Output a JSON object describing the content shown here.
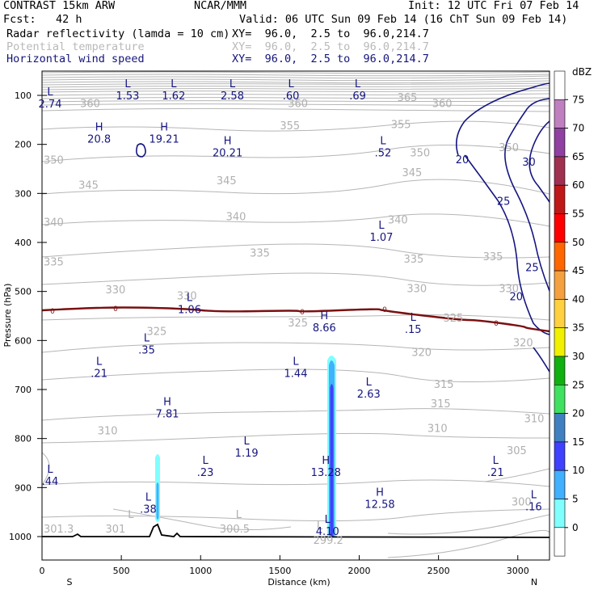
{
  "header": {
    "model": "CONTRAST 15km ARW",
    "center": "NCAR/MMM",
    "init": "Init: 12 UTC Fri 07 Feb 14",
    "fcst": "Fcst:   42 h",
    "valid": "Valid: 06 UTC Sun 09 Feb 14 (16 ChT Sun 09 Feb 14)",
    "fields": [
      {
        "name": "Radar reflectivity (lamda = 10 cm)",
        "xy": "XY=  96.0,  2.5 to  96.0,214.7"
      },
      {
        "name": "Potential temperature",
        "xy": "XY=  96.0,  2.5 to  96.0,214.7"
      },
      {
        "name": "Horizontal wind speed",
        "xy": "XY=  96.0,  2.5 to  96.0,214.7"
      }
    ]
  },
  "chart_data": {
    "type": "cross-section",
    "xlabel": "Distance (km)",
    "ylabel": "Pressure (hPa)",
    "x_ticks": [
      "0",
      "500",
      "1000",
      "1500",
      "2000",
      "2500",
      "3000"
    ],
    "y_ticks": [
      "100",
      "200",
      "300",
      "400",
      "500",
      "600",
      "700",
      "800",
      "900",
      "1000"
    ],
    "xlim": [
      0,
      3200
    ],
    "ylim": [
      50,
      1050
    ],
    "end_labels": {
      "left": "S",
      "right": "N"
    },
    "colorbar": {
      "unit": "dBZ",
      "levels": [
        "75",
        "70",
        "65",
        "60",
        "55",
        "50",
        "45",
        "40",
        "35",
        "30",
        "25",
        "20",
        "15",
        "10",
        "5",
        "0"
      ],
      "colors": [
        "#ffffff",
        "#c080c0",
        "#9040a0",
        "#a03050",
        "#c01818",
        "#ff0000",
        "#ff6600",
        "#f4a040",
        "#ffd040",
        "#f0f000",
        "#10b010",
        "#40e060",
        "#4080c0",
        "#4040ff",
        "#40b0ff",
        "#80ffff",
        "#ffffff"
      ]
    },
    "theta_contours": {
      "color": "#b0b0b0",
      "labels": [
        {
          "text": "360",
          "x": 240,
          "p": 117
        },
        {
          "text": "360",
          "x": 1550,
          "p": 117
        },
        {
          "text": "365",
          "x": 2240,
          "p": 105
        },
        {
          "text": "360",
          "x": 2460,
          "p": 117
        },
        {
          "text": "355",
          "x": 1500,
          "p": 163
        },
        {
          "text": "355",
          "x": 2200,
          "p": 160
        },
        {
          "text": "350",
          "x": -50,
          "p": 233
        },
        {
          "text": "350",
          "x": 2320,
          "p": 218
        },
        {
          "text": "350",
          "x": 2880,
          "p": 207
        },
        {
          "text": "345",
          "x": 230,
          "p": 284
        },
        {
          "text": "345",
          "x": 1100,
          "p": 275
        },
        {
          "text": "345",
          "x": 2270,
          "p": 258
        },
        {
          "text": "340",
          "x": -120,
          "p": 360
        },
        {
          "text": "340",
          "x": 1160,
          "p": 348
        },
        {
          "text": "340",
          "x": 2180,
          "p": 355
        },
        {
          "text": "335",
          "x": -90,
          "p": 440
        },
        {
          "text": "335",
          "x": 1310,
          "p": 422
        },
        {
          "text": "335",
          "x": 2280,
          "p": 435
        },
        {
          "text": "335",
          "x": 2780,
          "p": 430
        },
        {
          "text": "330",
          "x": 400,
          "p": 497
        },
        {
          "text": "330",
          "x": 850,
          "p": 510
        },
        {
          "text": "330",
          "x": 2300,
          "p": 495
        },
        {
          "text": "330",
          "x": 2880,
          "p": 495
        },
        {
          "text": "325",
          "x": 660,
          "p": 582
        },
        {
          "text": "325",
          "x": 1550,
          "p": 565
        },
        {
          "text": "325",
          "x": 2530,
          "p": 555
        },
        {
          "text": "320",
          "x": 2330,
          "p": 625
        },
        {
          "text": "320",
          "x": 2970,
          "p": 605
        },
        {
          "text": "315",
          "x": 2470,
          "p": 690
        },
        {
          "text": "315",
          "x": 2450,
          "p": 730
        },
        {
          "text": "310",
          "x": 350,
          "p": 785
        },
        {
          "text": "310",
          "x": 2430,
          "p": 780
        },
        {
          "text": "310",
          "x": 3040,
          "p": 760
        },
        {
          "text": "305",
          "x": 2930,
          "p": 825
        },
        {
          "text": "300",
          "x": 2960,
          "p": 930
        },
        {
          "text": "301.3",
          "x": -80,
          "p": 985
        },
        {
          "text": "301",
          "x": 400,
          "p": 985
        },
        {
          "text": "300.5",
          "x": 1120,
          "p": 985
        },
        {
          "text": "299.2",
          "x": 1710,
          "p": 1008
        }
      ],
      "marks": [
        {
          "text": "L",
          "x": 560,
          "p": 962
        },
        {
          "text": "L",
          "x": 1240,
          "p": 962
        },
        {
          "text": "L",
          "x": 1750,
          "p": 985
        }
      ]
    },
    "wind_extrema": [
      {
        "type": "L",
        "value": "2.74",
        "x": 30,
        "p": 108
      },
      {
        "type": "L",
        "value": "1.53",
        "x": 540,
        "p": 92
      },
      {
        "type": "L",
        "value": "1.62",
        "x": 830,
        "p": 92
      },
      {
        "type": "L",
        "value": "2.58",
        "x": 1200,
        "p": 92
      },
      {
        "type": "L",
        "value": ".60",
        "x": 1570,
        "p": 92
      },
      {
        "type": "L",
        "value": ".69",
        "x": 1990,
        "p": 92
      },
      {
        "type": "H",
        "value": "20.8",
        "x": 360,
        "p": 180
      },
      {
        "type": "H",
        "value": "19.21",
        "x": 770,
        "p": 180
      },
      {
        "type": "H",
        "value": "20.21",
        "x": 1170,
        "p": 208
      },
      {
        "type": "L",
        "value": ".52",
        "x": 2150,
        "p": 208
      },
      {
        "type": "L",
        "value": "1.07",
        "x": 2140,
        "p": 380
      },
      {
        "type": "L",
        "value": "1.06",
        "x": 930,
        "p": 528
      },
      {
        "type": "H",
        "value": "8.66",
        "x": 1780,
        "p": 565
      },
      {
        "type": "L",
        "value": ".15",
        "x": 2340,
        "p": 568
      },
      {
        "type": "L",
        "value": ".35",
        "x": 660,
        "p": 610
      },
      {
        "type": "L",
        "value": ".21",
        "x": 360,
        "p": 658
      },
      {
        "type": "L",
        "value": "1.44",
        "x": 1600,
        "p": 658
      },
      {
        "type": "L",
        "value": "2.63",
        "x": 2060,
        "p": 700
      },
      {
        "type": "H",
        "value": "7.81",
        "x": 790,
        "p": 740
      },
      {
        "type": "L",
        "value": "1.19",
        "x": 1290,
        "p": 820
      },
      {
        "type": "L",
        "value": ".23",
        "x": 1030,
        "p": 860
      },
      {
        "type": "H",
        "value": "13.28",
        "x": 1790,
        "p": 860
      },
      {
        "type": "L",
        "value": ".44",
        "x": -80,
        "p": 878
      },
      {
        "type": "L",
        "value": ".21",
        "x": 2860,
        "p": 860
      },
      {
        "type": "H",
        "value": "12.58",
        "x": 2130,
        "p": 925
      },
      {
        "type": "L",
        "value": ".38",
        "x": 670,
        "p": 935
      },
      {
        "type": "L",
        "value": ".16",
        "x": 3100,
        "p": 930
      },
      {
        "type": "L",
        "value": "4.10",
        "x": 1800,
        "p": 980
      }
    ],
    "wind_contours": {
      "color": "#151580",
      "labels": [
        {
          "text": "20",
          "x": 2650,
          "p": 230
        },
        {
          "text": "30",
          "x": 3070,
          "p": 235
        },
        {
          "text": "25",
          "x": 2910,
          "p": 315
        },
        {
          "text": "25",
          "x": 3090,
          "p": 450
        },
        {
          "text": "20",
          "x": 2990,
          "p": 510
        }
      ]
    },
    "zero_line_labels": [
      "0",
      "0",
      "0",
      "0",
      "0",
      "0",
      "0"
    ],
    "topography_color": "#000000"
  }
}
